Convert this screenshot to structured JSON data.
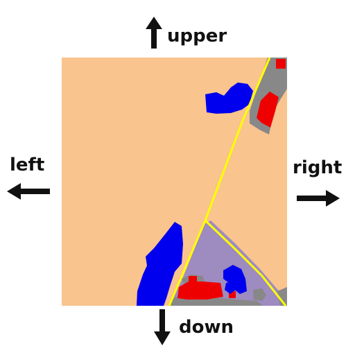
{
  "labels": {
    "up": "upper",
    "down": "down",
    "left": "left",
    "right": "right"
  },
  "colors": {
    "background": "#ffffff",
    "land": "#f9c48d",
    "water": "#0000ee",
    "building": "#ee0000",
    "road": "#ffff00",
    "pavement": "#888888",
    "zone": "#9e8bbf",
    "arrow": "#111111"
  },
  "icons": {
    "up": "arrow-up-icon",
    "down": "arrow-down-icon",
    "left": "arrow-left-icon",
    "right": "arrow-right-icon"
  }
}
